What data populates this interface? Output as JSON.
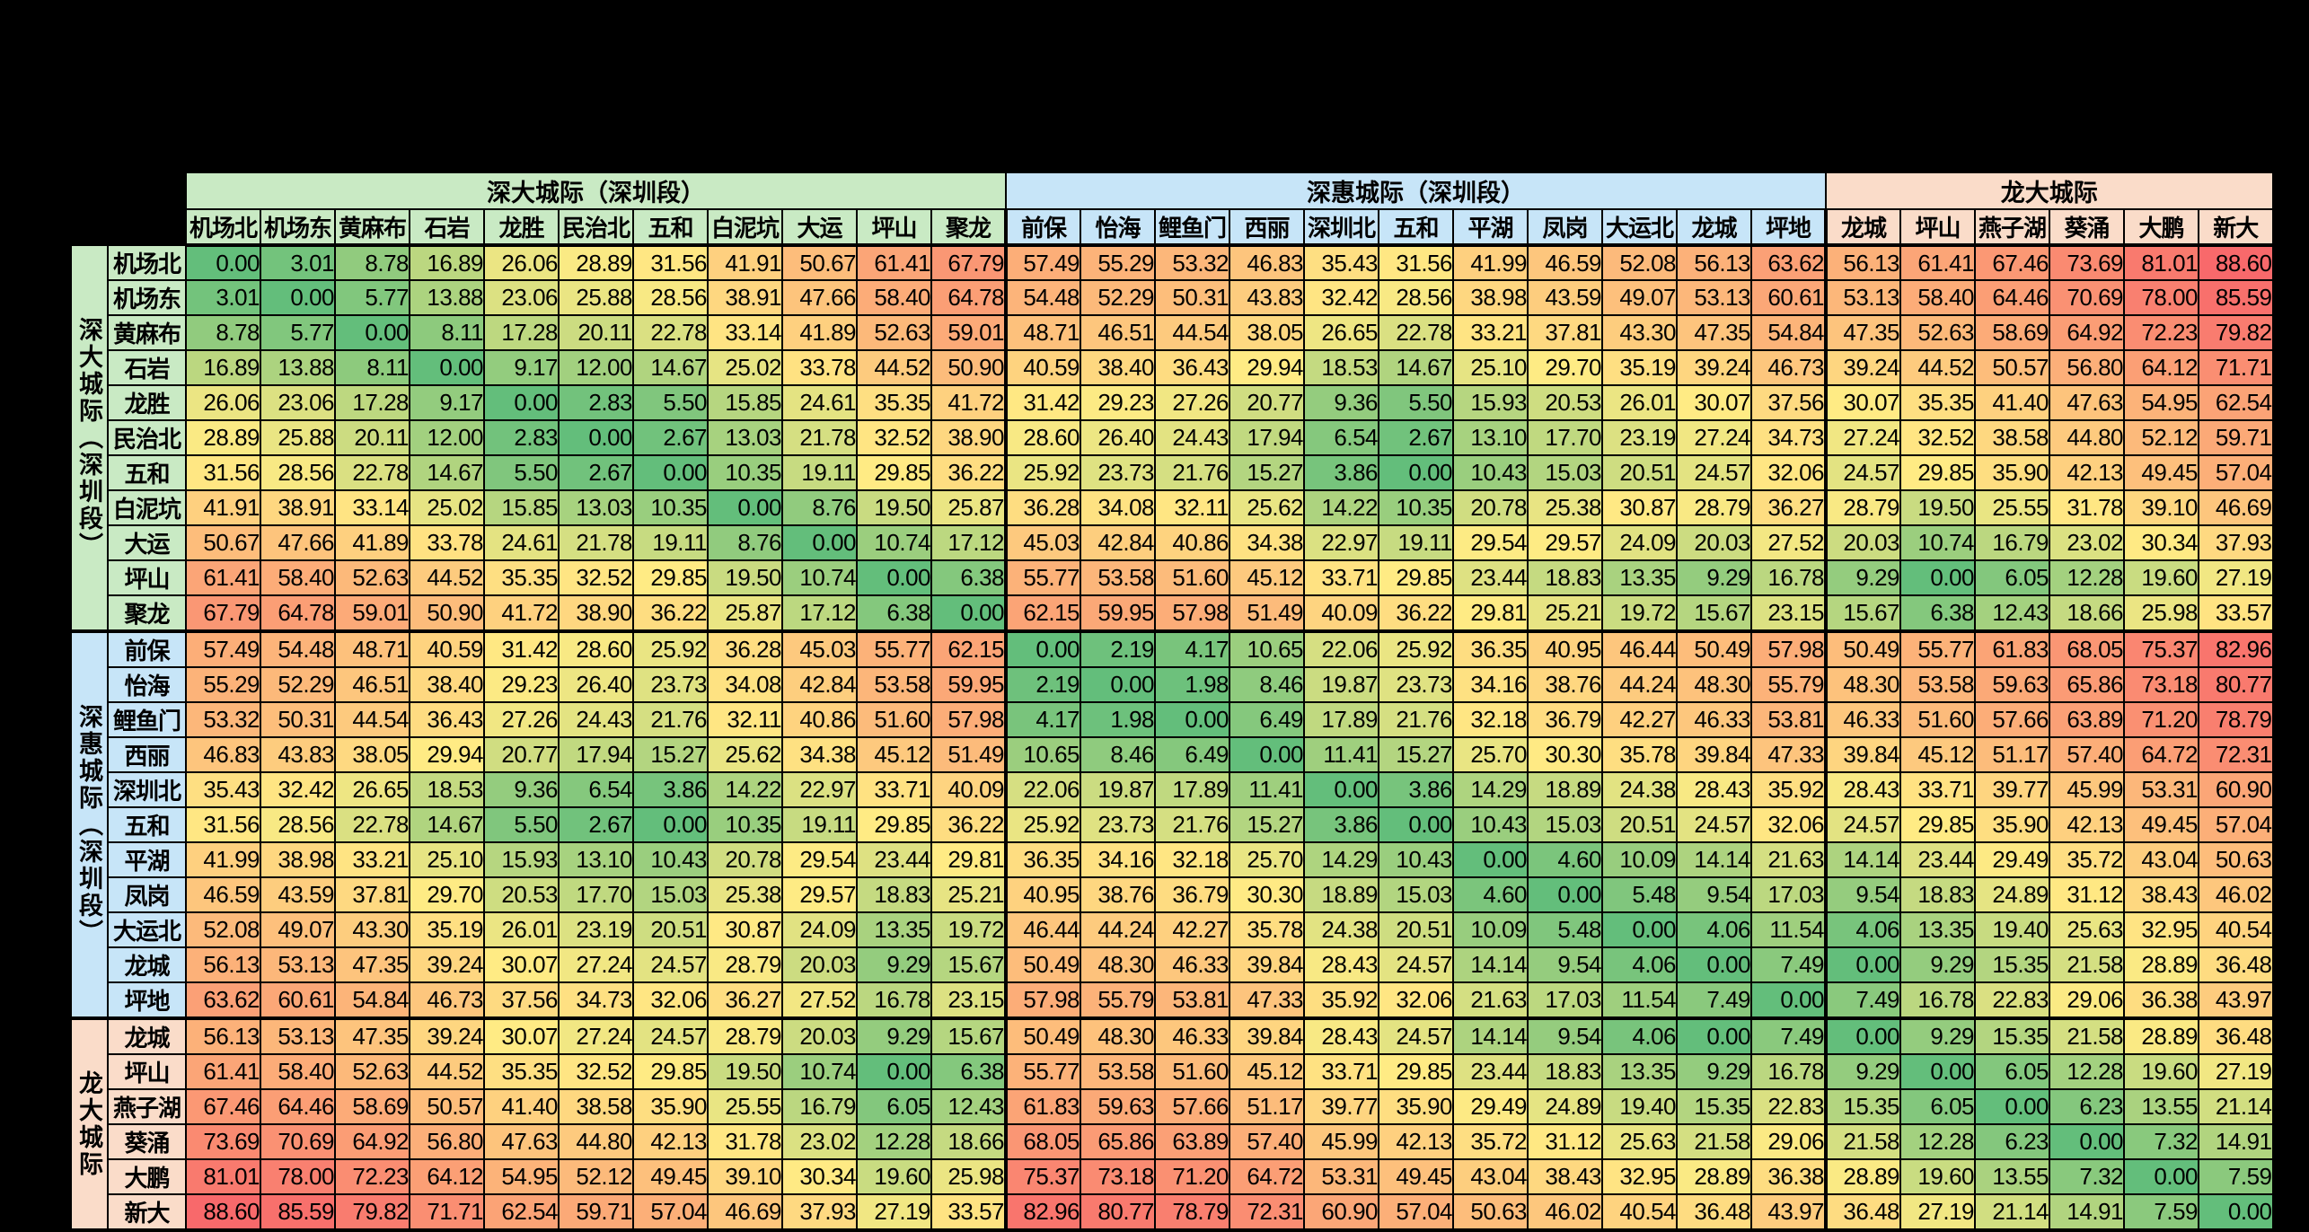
{
  "page": {
    "background": "#000000"
  },
  "chart_data": {
    "type": "heatmap",
    "title": "",
    "legend": "none",
    "grid": "on",
    "value_decimals": 2,
    "groups": [
      {
        "label": "深大城际（深圳段）",
        "span": 11,
        "color": "#C9EAC4"
      },
      {
        "label": "深惠城际（深圳段）",
        "span": 11,
        "color": "#C7E5F8"
      },
      {
        "label": "龙大城际",
        "span": 6,
        "color": "#FADCC9"
      }
    ],
    "categories": [
      "机场北",
      "机场东",
      "黄麻布",
      "石岩",
      "龙胜",
      "民治北",
      "五和",
      "白泥坑",
      "大运",
      "坪山",
      "聚龙",
      "前保",
      "怡海",
      "鲤鱼门",
      "西丽",
      "深圳北",
      "五和",
      "平湖",
      "凤岗",
      "大运北",
      "龙城",
      "坪地",
      "龙城",
      "坪山",
      "燕子湖",
      "葵涌",
      "大鹏",
      "新大"
    ],
    "colorscale": {
      "min": 0,
      "max": 88.6,
      "min_color": "#63BE7B",
      "mid_color": "#FFEB84",
      "max_color": "#F8696B"
    },
    "matrix": [
      [
        0.0,
        3.01,
        8.78,
        16.89,
        26.06,
        28.89,
        31.56,
        41.91,
        50.67,
        61.41,
        67.79,
        57.49,
        55.29,
        53.32,
        46.83,
        35.43,
        31.56,
        41.99,
        46.59,
        52.08,
        56.13,
        63.62,
        56.13,
        61.41,
        67.46,
        73.69,
        81.01,
        88.6
      ],
      [
        3.01,
        0.0,
        5.77,
        13.88,
        23.06,
        25.88,
        28.56,
        38.91,
        47.66,
        58.4,
        64.78,
        54.48,
        52.29,
        50.31,
        43.83,
        32.42,
        28.56,
        38.98,
        43.59,
        49.07,
        53.13,
        60.61,
        53.13,
        58.4,
        64.46,
        70.69,
        78.0,
        85.59
      ],
      [
        8.78,
        5.77,
        0.0,
        8.11,
        17.28,
        20.11,
        22.78,
        33.14,
        41.89,
        52.63,
        59.01,
        48.71,
        46.51,
        44.54,
        38.05,
        26.65,
        22.78,
        33.21,
        37.81,
        43.3,
        47.35,
        54.84,
        47.35,
        52.63,
        58.69,
        64.92,
        72.23,
        79.82
      ],
      [
        16.89,
        13.88,
        8.11,
        0.0,
        9.17,
        12.0,
        14.67,
        25.02,
        33.78,
        44.52,
        50.9,
        40.59,
        38.4,
        36.43,
        29.94,
        18.53,
        14.67,
        25.1,
        29.7,
        35.19,
        39.24,
        46.73,
        39.24,
        44.52,
        50.57,
        56.8,
        64.12,
        71.71
      ],
      [
        26.06,
        23.06,
        17.28,
        9.17,
        0.0,
        2.83,
        5.5,
        15.85,
        24.61,
        35.35,
        41.72,
        31.42,
        29.23,
        27.26,
        20.77,
        9.36,
        5.5,
        15.93,
        20.53,
        26.01,
        30.07,
        37.56,
        30.07,
        35.35,
        41.4,
        47.63,
        54.95,
        62.54
      ],
      [
        28.89,
        25.88,
        20.11,
        12.0,
        2.83,
        0.0,
        2.67,
        13.03,
        21.78,
        32.52,
        38.9,
        28.6,
        26.4,
        24.43,
        17.94,
        6.54,
        2.67,
        13.1,
        17.7,
        23.19,
        27.24,
        34.73,
        27.24,
        32.52,
        38.58,
        44.8,
        52.12,
        59.71
      ],
      [
        31.56,
        28.56,
        22.78,
        14.67,
        5.5,
        2.67,
        0.0,
        10.35,
        19.11,
        29.85,
        36.22,
        25.92,
        23.73,
        21.76,
        15.27,
        3.86,
        0.0,
        10.43,
        15.03,
        20.51,
        24.57,
        32.06,
        24.57,
        29.85,
        35.9,
        42.13,
        49.45,
        57.04
      ],
      [
        41.91,
        38.91,
        33.14,
        25.02,
        15.85,
        13.03,
        10.35,
        0.0,
        8.76,
        19.5,
        25.87,
        36.28,
        34.08,
        32.11,
        25.62,
        14.22,
        10.35,
        20.78,
        25.38,
        30.87,
        28.79,
        36.27,
        28.79,
        19.5,
        25.55,
        31.78,
        39.1,
        46.69
      ],
      [
        50.67,
        47.66,
        41.89,
        33.78,
        24.61,
        21.78,
        19.11,
        8.76,
        0.0,
        10.74,
        17.12,
        45.03,
        42.84,
        40.86,
        34.38,
        22.97,
        19.11,
        29.54,
        29.57,
        24.09,
        20.03,
        27.52,
        20.03,
        10.74,
        16.79,
        23.02,
        30.34,
        37.93
      ],
      [
        61.41,
        58.4,
        52.63,
        44.52,
        35.35,
        32.52,
        29.85,
        19.5,
        10.74,
        0.0,
        6.38,
        55.77,
        53.58,
        51.6,
        45.12,
        33.71,
        29.85,
        23.44,
        18.83,
        13.35,
        9.29,
        16.78,
        9.29,
        0.0,
        6.05,
        12.28,
        19.6,
        27.19
      ],
      [
        67.79,
        64.78,
        59.01,
        50.9,
        41.72,
        38.9,
        36.22,
        25.87,
        17.12,
        6.38,
        0.0,
        62.15,
        59.95,
        57.98,
        51.49,
        40.09,
        36.22,
        29.81,
        25.21,
        19.72,
        15.67,
        23.15,
        15.67,
        6.38,
        12.43,
        18.66,
        25.98,
        33.57
      ],
      [
        57.49,
        54.48,
        48.71,
        40.59,
        31.42,
        28.6,
        25.92,
        36.28,
        45.03,
        55.77,
        62.15,
        0.0,
        2.19,
        4.17,
        10.65,
        22.06,
        25.92,
        36.35,
        40.95,
        46.44,
        50.49,
        57.98,
        50.49,
        55.77,
        61.83,
        68.05,
        75.37,
        82.96
      ],
      [
        55.29,
        52.29,
        46.51,
        38.4,
        29.23,
        26.4,
        23.73,
        34.08,
        42.84,
        53.58,
        59.95,
        2.19,
        0.0,
        1.98,
        8.46,
        19.87,
        23.73,
        34.16,
        38.76,
        44.24,
        48.3,
        55.79,
        48.3,
        53.58,
        59.63,
        65.86,
        73.18,
        80.77
      ],
      [
        53.32,
        50.31,
        44.54,
        36.43,
        27.26,
        24.43,
        21.76,
        32.11,
        40.86,
        51.6,
        57.98,
        4.17,
        1.98,
        0.0,
        6.49,
        17.89,
        21.76,
        32.18,
        36.79,
        42.27,
        46.33,
        53.81,
        46.33,
        51.6,
        57.66,
        63.89,
        71.2,
        78.79
      ],
      [
        46.83,
        43.83,
        38.05,
        29.94,
        20.77,
        17.94,
        15.27,
        25.62,
        34.38,
        45.12,
        51.49,
        10.65,
        8.46,
        6.49,
        0.0,
        11.41,
        15.27,
        25.7,
        30.3,
        35.78,
        39.84,
        47.33,
        39.84,
        45.12,
        51.17,
        57.4,
        64.72,
        72.31
      ],
      [
        35.43,
        32.42,
        26.65,
        18.53,
        9.36,
        6.54,
        3.86,
        14.22,
        22.97,
        33.71,
        40.09,
        22.06,
        19.87,
        17.89,
        11.41,
        0.0,
        3.86,
        14.29,
        18.89,
        24.38,
        28.43,
        35.92,
        28.43,
        33.71,
        39.77,
        45.99,
        53.31,
        60.9
      ],
      [
        31.56,
        28.56,
        22.78,
        14.67,
        5.5,
        2.67,
        0.0,
        10.35,
        19.11,
        29.85,
        36.22,
        25.92,
        23.73,
        21.76,
        15.27,
        3.86,
        0.0,
        10.43,
        15.03,
        20.51,
        24.57,
        32.06,
        24.57,
        29.85,
        35.9,
        42.13,
        49.45,
        57.04
      ],
      [
        41.99,
        38.98,
        33.21,
        25.1,
        15.93,
        13.1,
        10.43,
        20.78,
        29.54,
        23.44,
        29.81,
        36.35,
        34.16,
        32.18,
        25.7,
        14.29,
        10.43,
        0.0,
        4.6,
        10.09,
        14.14,
        21.63,
        14.14,
        23.44,
        29.49,
        35.72,
        43.04,
        50.63
      ],
      [
        46.59,
        43.59,
        37.81,
        29.7,
        20.53,
        17.7,
        15.03,
        25.38,
        29.57,
        18.83,
        25.21,
        40.95,
        38.76,
        36.79,
        30.3,
        18.89,
        15.03,
        4.6,
        0.0,
        5.48,
        9.54,
        17.03,
        9.54,
        18.83,
        24.89,
        31.12,
        38.43,
        46.02
      ],
      [
        52.08,
        49.07,
        43.3,
        35.19,
        26.01,
        23.19,
        20.51,
        30.87,
        24.09,
        13.35,
        19.72,
        46.44,
        44.24,
        42.27,
        35.78,
        24.38,
        20.51,
        10.09,
        5.48,
        0.0,
        4.06,
        11.54,
        4.06,
        13.35,
        19.4,
        25.63,
        32.95,
        40.54
      ],
      [
        56.13,
        53.13,
        47.35,
        39.24,
        30.07,
        27.24,
        24.57,
        28.79,
        20.03,
        9.29,
        15.67,
        50.49,
        48.3,
        46.33,
        39.84,
        28.43,
        24.57,
        14.14,
        9.54,
        4.06,
        0.0,
        7.49,
        0.0,
        9.29,
        15.35,
        21.58,
        28.89,
        36.48
      ],
      [
        63.62,
        60.61,
        54.84,
        46.73,
        37.56,
        34.73,
        32.06,
        36.27,
        27.52,
        16.78,
        23.15,
        57.98,
        55.79,
        53.81,
        47.33,
        35.92,
        32.06,
        21.63,
        17.03,
        11.54,
        7.49,
        0.0,
        7.49,
        16.78,
        22.83,
        29.06,
        36.38,
        43.97
      ],
      [
        56.13,
        53.13,
        47.35,
        39.24,
        30.07,
        27.24,
        24.57,
        28.79,
        20.03,
        9.29,
        15.67,
        50.49,
        48.3,
        46.33,
        39.84,
        28.43,
        24.57,
        14.14,
        9.54,
        4.06,
        0.0,
        7.49,
        0.0,
        9.29,
        15.35,
        21.58,
        28.89,
        36.48
      ],
      [
        61.41,
        58.4,
        52.63,
        44.52,
        35.35,
        32.52,
        29.85,
        19.5,
        10.74,
        0.0,
        6.38,
        55.77,
        53.58,
        51.6,
        45.12,
        33.71,
        29.85,
        23.44,
        18.83,
        13.35,
        9.29,
        16.78,
        9.29,
        0.0,
        6.05,
        12.28,
        19.6,
        27.19
      ],
      [
        67.46,
        64.46,
        58.69,
        50.57,
        41.4,
        38.58,
        35.9,
        25.55,
        16.79,
        6.05,
        12.43,
        61.83,
        59.63,
        57.66,
        51.17,
        39.77,
        35.9,
        29.49,
        24.89,
        19.4,
        15.35,
        22.83,
        15.35,
        6.05,
        0.0,
        6.23,
        13.55,
        21.14
      ],
      [
        73.69,
        70.69,
        64.92,
        56.8,
        47.63,
        44.8,
        42.13,
        31.78,
        23.02,
        12.28,
        18.66,
        68.05,
        65.86,
        63.89,
        57.4,
        45.99,
        42.13,
        35.72,
        31.12,
        25.63,
        21.58,
        29.06,
        21.58,
        12.28,
        6.23,
        0.0,
        7.32,
        14.91
      ],
      [
        81.01,
        78.0,
        72.23,
        64.12,
        54.95,
        52.12,
        49.45,
        39.1,
        30.34,
        19.6,
        25.98,
        75.37,
        73.18,
        71.2,
        64.72,
        53.31,
        49.45,
        43.04,
        38.43,
        32.95,
        28.89,
        36.38,
        28.89,
        19.6,
        13.55,
        7.32,
        0.0,
        7.59
      ],
      [
        88.6,
        85.59,
        79.82,
        71.71,
        62.54,
        59.71,
        57.04,
        46.69,
        37.93,
        27.19,
        33.57,
        82.96,
        80.77,
        78.79,
        72.31,
        60.9,
        57.04,
        50.63,
        46.02,
        40.54,
        36.48,
        43.97,
        36.48,
        27.19,
        21.14,
        14.91,
        7.59,
        0.0
      ]
    ]
  }
}
